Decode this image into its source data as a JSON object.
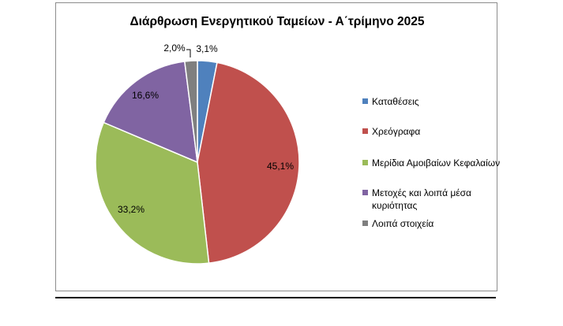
{
  "chart_data": {
    "type": "pie",
    "title": "Διάρθρωση Ενεργητικού Ταμείων - Α΄τρίμηνο 2025",
    "slices": [
      {
        "name": "Καταθέσεις",
        "value": 3.1,
        "label": "3,1%",
        "color": "#4f81bd"
      },
      {
        "name": "Χρεόγραφα",
        "value": 45.1,
        "label": "45,1%",
        "color": "#c0504d"
      },
      {
        "name": "Μερίδια Αμοιβαίων Κεφαλαίων",
        "value": 33.2,
        "label": "33,2%",
        "color": "#9bbb59"
      },
      {
        "name": "Μετοχές και λοιπά μέσα κυριότητας",
        "value": 16.6,
        "label": "16,6%",
        "color": "#8064a2"
      },
      {
        "name": "Λοιπά στοιχεία",
        "value": 2.0,
        "label": "2,0%",
        "color": "#7f7f7f"
      }
    ],
    "legend_position": "right"
  }
}
